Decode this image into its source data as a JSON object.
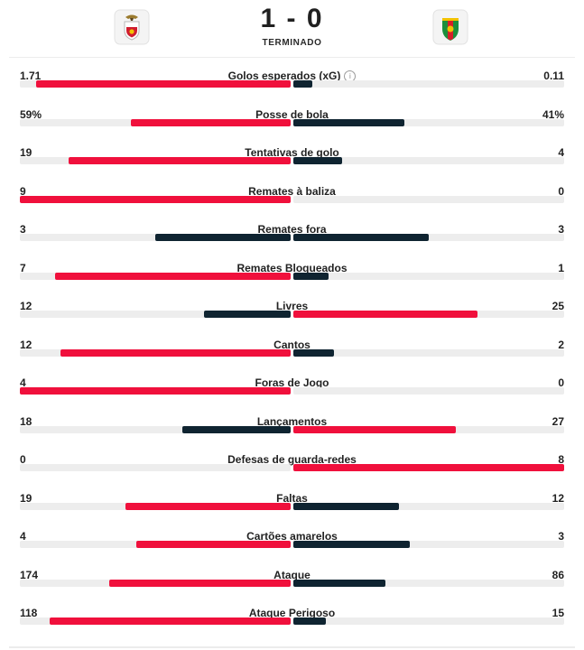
{
  "match": {
    "score": "1 - 0",
    "status": "TERMINADO",
    "home_crest": "benfica-crest",
    "away_crest": "estrela-amadora-crest"
  },
  "colors": {
    "leader": "#f0103c",
    "trailer": "#0f2431",
    "track": "#ededed"
  },
  "stats": [
    {
      "label": "Golos esperados (xG)",
      "home": "1.71",
      "away": "0.11",
      "home_share": 0.94,
      "away_share": 0.07,
      "info": true
    },
    {
      "label": "Posse de bola",
      "home": "59%",
      "away": "41%",
      "home_share": 0.59,
      "away_share": 0.41
    },
    {
      "label": "Tentativas de golo",
      "home": "19",
      "away": "4",
      "home_share": 0.82,
      "away_share": 0.18
    },
    {
      "label": "Remates à baliza",
      "home": "9",
      "away": "0",
      "home_share": 1.0,
      "away_share": 0.0
    },
    {
      "label": "Remates fora",
      "home": "3",
      "away": "3",
      "home_share": 0.5,
      "away_share": 0.5
    },
    {
      "label": "Remates Bloqueados",
      "home": "7",
      "away": "1",
      "home_share": 0.87,
      "away_share": 0.13
    },
    {
      "label": "Livres",
      "home": "12",
      "away": "25",
      "home_share": 0.32,
      "away_share": 0.68
    },
    {
      "label": "Cantos",
      "home": "12",
      "away": "2",
      "home_share": 0.85,
      "away_share": 0.15
    },
    {
      "label": "Foras de Jogo",
      "home": "4",
      "away": "0",
      "home_share": 1.0,
      "away_share": 0.0
    },
    {
      "label": "Lançamentos",
      "home": "18",
      "away": "27",
      "home_share": 0.4,
      "away_share": 0.6
    },
    {
      "label": "Defesas de guarda-redes",
      "home": "0",
      "away": "8",
      "home_share": 0.0,
      "away_share": 1.0
    },
    {
      "label": "Faltas",
      "home": "19",
      "away": "12",
      "home_share": 0.61,
      "away_share": 0.39
    },
    {
      "label": "Cartões amarelos",
      "home": "4",
      "away": "3",
      "home_share": 0.57,
      "away_share": 0.43
    },
    {
      "label": "Ataque",
      "home": "174",
      "away": "86",
      "home_share": 0.67,
      "away_share": 0.34
    },
    {
      "label": "Ataque Perigoso",
      "home": "118",
      "away": "15",
      "home_share": 0.89,
      "away_share": 0.12
    }
  ]
}
